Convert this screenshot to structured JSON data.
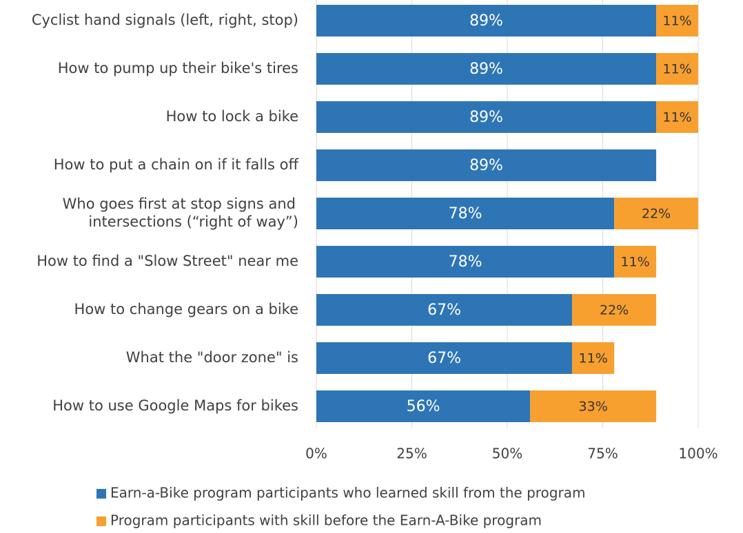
{
  "chart_data": {
    "type": "stacked_barh",
    "categories": [
      "Cyclist hand signals (left, right, stop)",
      "How to pump up their bike's tires",
      "How to lock a bike",
      "How to put a chain on if it falls off",
      "Who goes first at stop signs and\nintersections (“right of way”)",
      "How to find a \"Slow Street\" near me",
      "How to change gears on a bike",
      "What the \"door zone\" is",
      "How to use Google Maps for bikes"
    ],
    "series": [
      {
        "name": "Earn-a-Bike program participants who learned skill from the program",
        "color": "#2e75b6",
        "values": [
          89,
          89,
          89,
          89,
          78,
          78,
          67,
          67,
          56
        ],
        "value_labels": [
          "89%",
          "89%",
          "89%",
          "89%",
          "78%",
          "78%",
          "67%",
          "67%",
          "56%"
        ]
      },
      {
        "name": "Program participants with skill before the Earn-A-Bike program",
        "color": "#f7a030",
        "values": [
          11,
          11,
          11,
          null,
          22,
          11,
          22,
          11,
          33
        ],
        "value_labels": [
          "11%",
          "11%",
          "11%",
          null,
          "22%",
          "11%",
          "22%",
          "11%",
          "33%"
        ]
      }
    ],
    "xlim": [
      0,
      100
    ],
    "xticks": [
      {
        "value": 0,
        "label": "0%"
      },
      {
        "value": 25,
        "label": "25%"
      },
      {
        "value": 50,
        "label": "50%"
      },
      {
        "value": 75,
        "label": "75%"
      },
      {
        "value": 100,
        "label": "100%"
      }
    ],
    "grid": true,
    "legend": "bottom"
  }
}
